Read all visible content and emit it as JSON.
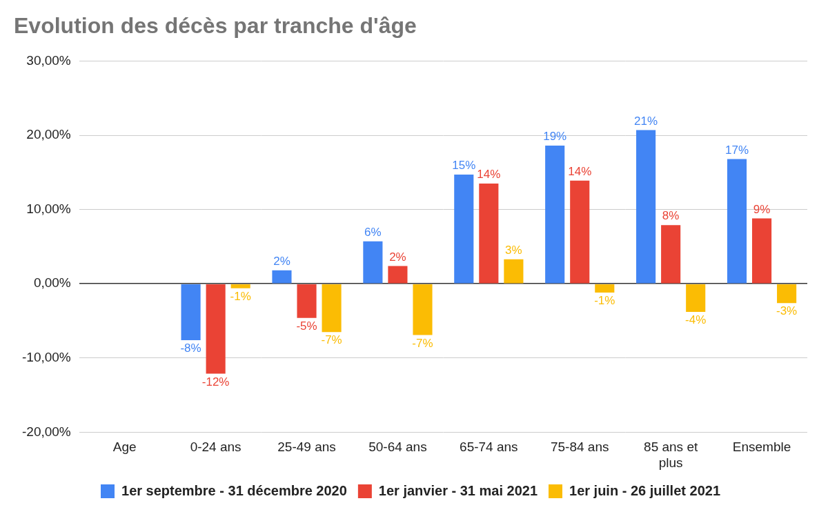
{
  "chart_data": {
    "type": "bar",
    "title": "Evolution des décès par tranche d'âge",
    "categories": [
      "Age",
      "0-24 ans",
      "25-49 ans",
      "50-64 ans",
      "65-74 ans",
      "75-84 ans",
      "85 ans et plus",
      "Ensemble"
    ],
    "series": [
      {
        "name": "1er septembre - 31 décembre 2020",
        "color": "#4285f4",
        "values": [
          null,
          -7.6,
          1.8,
          5.7,
          14.7,
          18.6,
          20.7,
          16.8
        ],
        "value_labels": [
          null,
          "-8%",
          "2%",
          "6%",
          "15%",
          "19%",
          "21%",
          "17%"
        ]
      },
      {
        "name": "1er janvier - 31 mai 2021",
        "color": "#ea4335",
        "values": [
          null,
          -12.1,
          -4.6,
          2.4,
          13.5,
          13.9,
          7.9,
          8.8
        ],
        "value_labels": [
          null,
          "-12%",
          "-5%",
          "2%",
          "14%",
          "14%",
          "8%",
          "9%"
        ]
      },
      {
        "name": "1er juin - 26 juillet 2021",
        "color": "#fbbc04",
        "values": [
          null,
          -0.6,
          -6.5,
          -6.9,
          3.3,
          -1.2,
          -3.8,
          -2.6
        ],
        "value_labels": [
          null,
          "-1%",
          "-7%",
          "-7%",
          "3%",
          "-1%",
          "-4%",
          "-3%"
        ]
      }
    ],
    "ylim": [
      -20,
      30
    ],
    "yticks": [
      {
        "value": -20,
        "label": "-20,00%"
      },
      {
        "value": -10,
        "label": "-10,00%"
      },
      {
        "value": 0,
        "label": "0,00%"
      },
      {
        "value": 10,
        "label": "10,00%"
      },
      {
        "value": 20,
        "label": "20,00%"
      },
      {
        "value": 30,
        "label": "30,00%"
      }
    ],
    "grid": true,
    "legend": "bottom",
    "data_labels": true
  }
}
